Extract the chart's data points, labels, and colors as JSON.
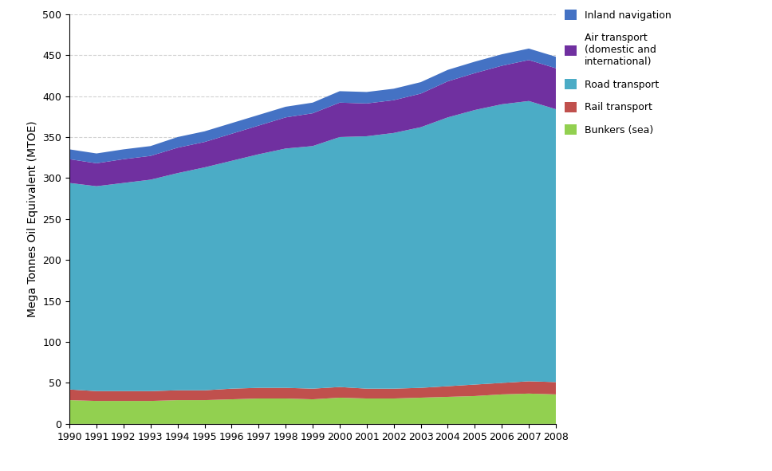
{
  "years": [
    1990,
    1991,
    1992,
    1993,
    1994,
    1995,
    1996,
    1997,
    1998,
    1999,
    2000,
    2001,
    2002,
    2003,
    2004,
    2005,
    2006,
    2007,
    2008
  ],
  "bunkers_sea": [
    29,
    28,
    28,
    28,
    29,
    29,
    30,
    31,
    31,
    30,
    32,
    31,
    31,
    32,
    33,
    34,
    36,
    37,
    36
  ],
  "rail_transport": [
    13,
    12,
    12,
    12,
    12,
    12,
    13,
    13,
    13,
    13,
    13,
    12,
    12,
    12,
    13,
    14,
    14,
    15,
    15
  ],
  "road_transport": [
    252,
    250,
    254,
    258,
    265,
    272,
    278,
    285,
    292,
    296,
    305,
    308,
    312,
    318,
    328,
    335,
    340,
    342,
    333
  ],
  "air_transport": [
    29,
    28,
    29,
    29,
    31,
    31,
    33,
    35,
    38,
    40,
    42,
    40,
    40,
    41,
    44,
    45,
    47,
    50,
    50
  ],
  "inland_navigation": [
    12,
    12,
    12,
    12,
    13,
    13,
    13,
    13,
    13,
    13,
    14,
    14,
    14,
    14,
    14,
    14,
    14,
    14,
    14
  ],
  "colors": {
    "bunkers_sea": "#92d050",
    "rail_transport": "#c0504d",
    "road_transport": "#4bacc6",
    "air_transport": "#7030a0",
    "inland_navigation": "#4472c4"
  },
  "ylabel": "Mega Tonnes Oil Equivalent (MTOE)",
  "ylim": [
    0,
    500
  ],
  "yticks": [
    0,
    50,
    100,
    150,
    200,
    250,
    300,
    350,
    400,
    450,
    500
  ],
  "background_color": "#ffffff",
  "grid_color": "#bfbfbf",
  "grid_style": "--",
  "legend_order": [
    "Inland navigation",
    "Air transport\n(domestic and\ninternational)",
    "Road transport",
    "Rail transport",
    "Bunkers (sea)"
  ]
}
